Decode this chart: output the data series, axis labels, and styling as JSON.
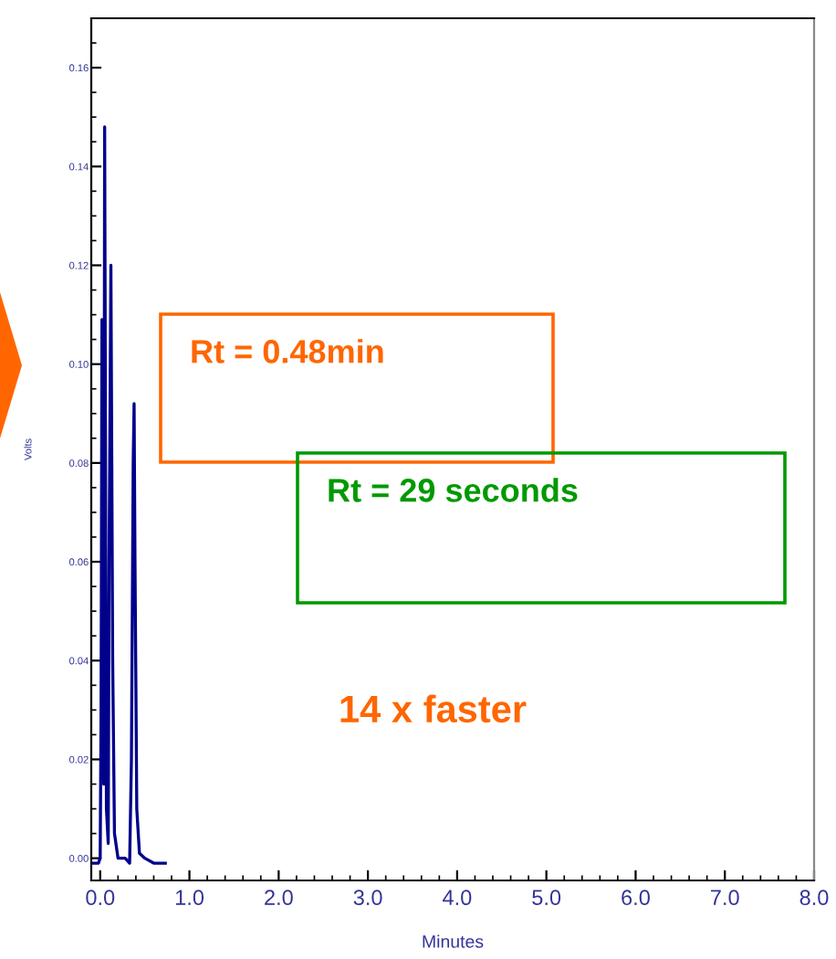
{
  "chart_data": {
    "type": "line",
    "xlabel": "Minutes",
    "ylabel": "Volts",
    "x": [
      -0.08,
      -0.02,
      0.0,
      0.01,
      0.02,
      0.03,
      0.04,
      0.05,
      0.06,
      0.07,
      0.09,
      0.1,
      0.12,
      0.14,
      0.16,
      0.2,
      0.28,
      0.33,
      0.35,
      0.37,
      0.38,
      0.39,
      0.41,
      0.44,
      0.5,
      0.6,
      0.73
    ],
    "series": [
      {
        "color": "#00008b",
        "values": [
          -0.001,
          -0.001,
          0.0,
          0.03,
          0.109,
          0.06,
          0.015,
          0.148,
          0.08,
          0.01,
          0.003,
          0.06,
          0.12,
          0.04,
          0.005,
          0.0,
          0.0,
          -0.001,
          0.02,
          0.08,
          0.092,
          0.06,
          0.01,
          0.001,
          0.0,
          -0.001,
          -0.001
        ]
      }
    ],
    "xlim": [
      -0.1,
      8.0
    ],
    "xticks": [
      {
        "value": 0,
        "label": "0.0"
      },
      {
        "value": 1,
        "label": "1.0"
      },
      {
        "value": 2,
        "label": "2.0"
      },
      {
        "value": 3,
        "label": "3.0"
      },
      {
        "value": 4,
        "label": "4.0"
      },
      {
        "value": 5,
        "label": "5.0"
      },
      {
        "value": 6,
        "label": "6.0"
      },
      {
        "value": 7,
        "label": "7.0"
      },
      {
        "value": 8,
        "label": "8.0"
      }
    ],
    "ylim": [
      -0.0045,
      0.17
    ],
    "yticks": [
      {
        "value": 0,
        "label": "0.00"
      },
      {
        "value": 0.02,
        "label": "0.02"
      },
      {
        "value": 0.04,
        "label": "0.04"
      },
      {
        "value": 0.06,
        "label": "0.06"
      },
      {
        "value": 0.08,
        "label": "0.08"
      },
      {
        "value": 0.1,
        "label": "0.10"
      },
      {
        "value": 0.12,
        "label": "0.12"
      },
      {
        "value": 0.14,
        "label": "0.14"
      },
      {
        "value": 0.16,
        "label": "0.16"
      }
    ],
    "annotations": [
      "Rt = 0.48min",
      "Rt = 29 seconds",
      "14 x faster"
    ],
    "grid": false,
    "legend": false,
    "marker": "none",
    "line_style": "solid"
  }
}
